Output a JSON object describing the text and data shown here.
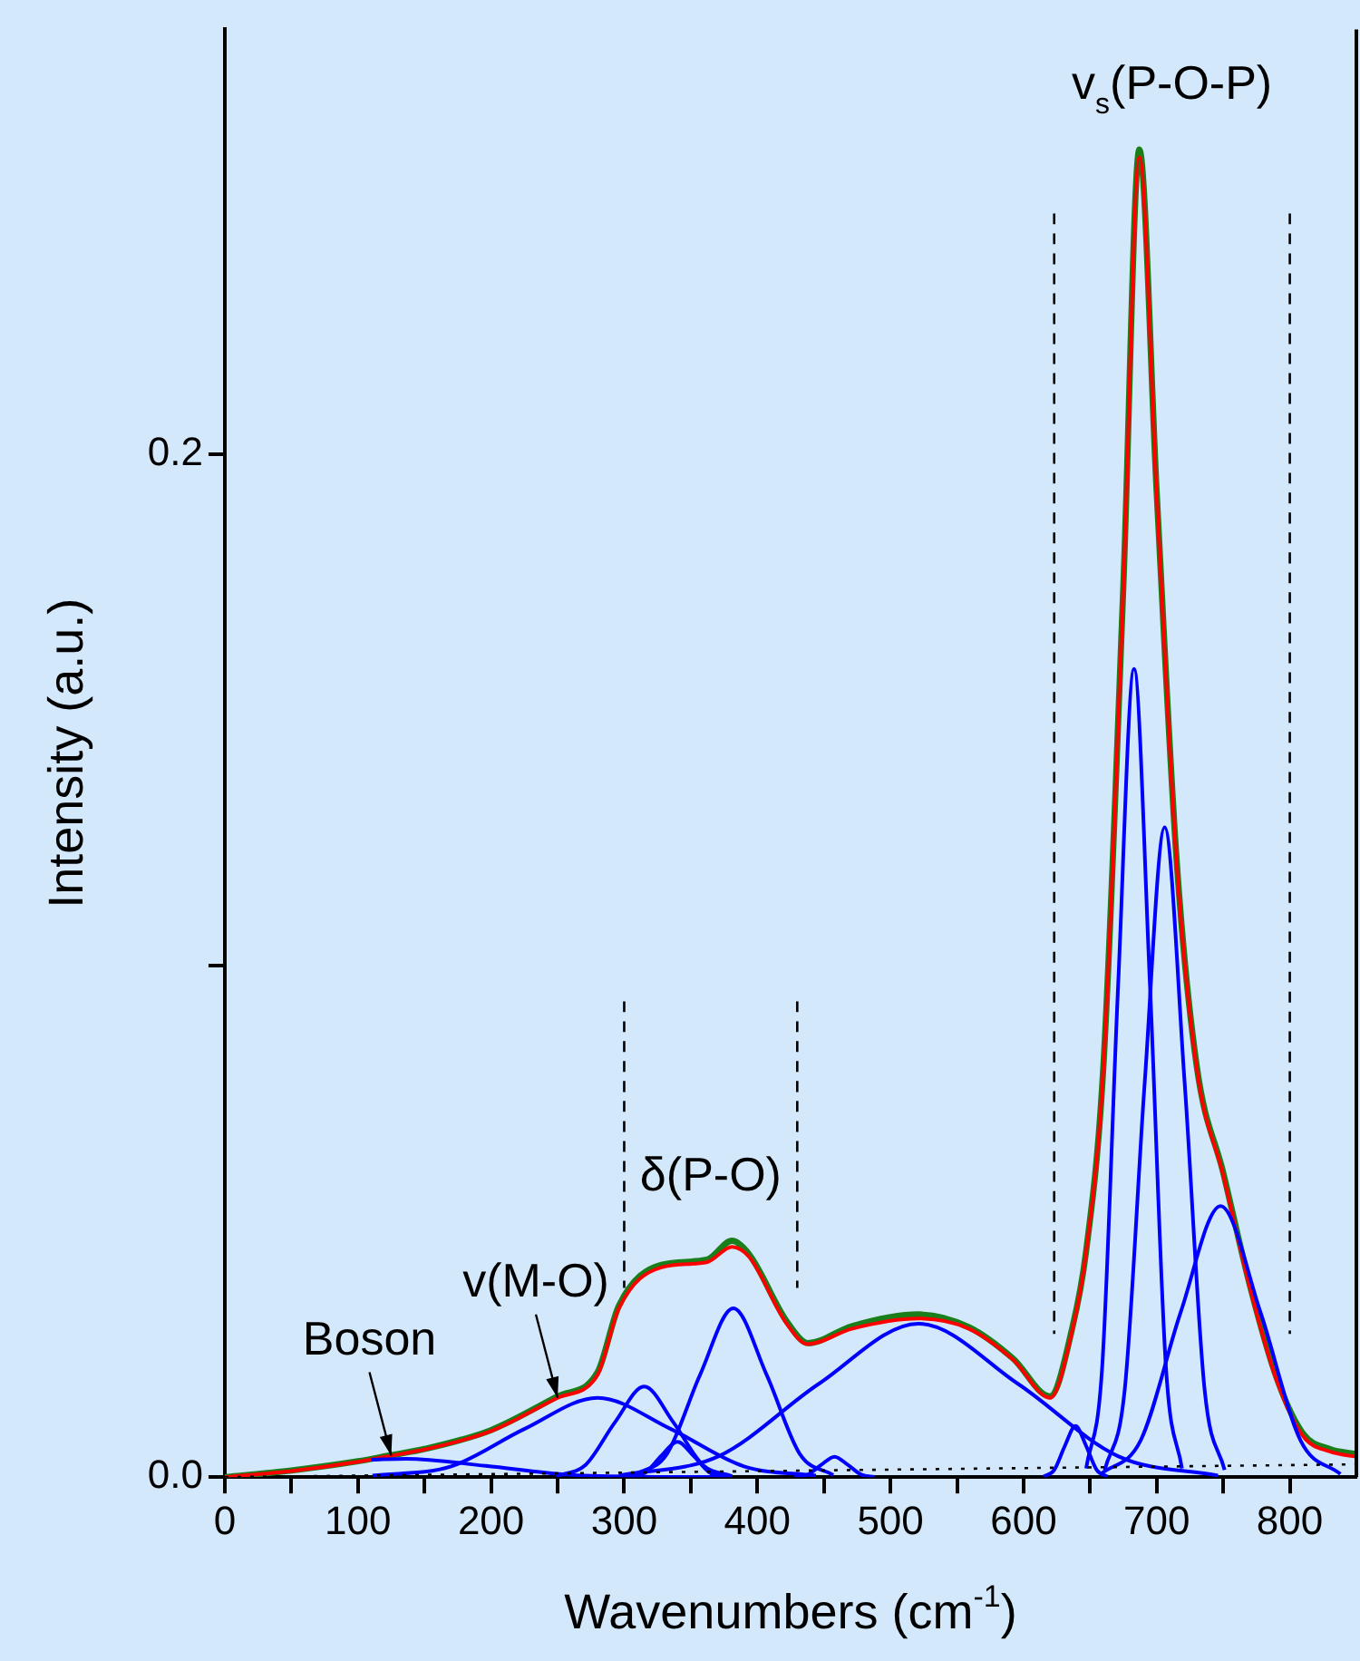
{
  "chart_data": {
    "type": "line",
    "xlabel": "Wavenumbers (cm$^{-1}$)",
    "ylabel": "Intensity (a.u.)",
    "xlim": [
      0,
      850
    ],
    "xticks": [
      0,
      {
        "value": 50,
        "label": null
      },
      100,
      {
        "value": 150,
        "label": null
      },
      200,
      {
        "value": 250,
        "label": null
      },
      300,
      {
        "value": 350,
        "label": null
      },
      400,
      {
        "value": 450,
        "label": null
      },
      500,
      {
        "value": 550,
        "label": null
      },
      600,
      {
        "value": 650,
        "label": null
      },
      700,
      {
        "value": 750,
        "label": null
      },
      800
    ],
    "ylim": [
      0,
      0.283
    ],
    "yticks": [
      {
        "value": 0,
        "label": "0.0"
      },
      {
        "value": 0.1,
        "label": null
      },
      0.2
    ],
    "grid": false,
    "legend": false,
    "marker": "none",
    "series": [
      {
        "color": "#1a7f1a",
        "x": [
          0,
          50,
          100,
          125,
          150,
          200,
          250,
          280,
          296,
          328,
          362,
          381,
          394,
          422,
          438,
          471,
          521,
          559,
          592,
          620,
          636,
          647,
          660,
          675,
          687,
          700,
          715,
          730,
          750,
          770,
          790,
          810,
          830,
          850
        ],
        "values": [
          0,
          0.0013,
          0.0031,
          0.0043,
          0.0055,
          0.0092,
          0.0158,
          0.0205,
          0.0335,
          0.0415,
          0.0425,
          0.0462,
          0.0435,
          0.0305,
          0.0262,
          0.0295,
          0.0318,
          0.0293,
          0.0232,
          0.0158,
          0.0285,
          0.0442,
          0.0805,
          0.1745,
          0.2595,
          0.1925,
          0.1205,
          0.0805,
          0.0595,
          0.0375,
          0.0195,
          0.0085,
          0.0055,
          0.0045
        ]
      },
      {
        "color": "#ff0000",
        "x": [
          0,
          50,
          100,
          125,
          150,
          200,
          250,
          280,
          296,
          328,
          362,
          381,
          394,
          422,
          438,
          471,
          521,
          559,
          592,
          620,
          636,
          647,
          660,
          675,
          687,
          700,
          715,
          730,
          750,
          770,
          790,
          810,
          830,
          850
        ],
        "values": [
          0,
          0.0012,
          0.003,
          0.0042,
          0.0054,
          0.009,
          0.0155,
          0.02,
          0.033,
          0.041,
          0.042,
          0.045,
          0.043,
          0.03,
          0.026,
          0.029,
          0.031,
          0.029,
          0.023,
          0.0155,
          0.028,
          0.044,
          0.08,
          0.174,
          0.258,
          0.192,
          0.12,
          0.08,
          0.059,
          0.037,
          0.019,
          0.008,
          0.005,
          0.004
        ]
      },
      {
        "type": "line",
        "color": "#0000ff",
        "x": [
          110,
          136,
          196,
          256,
          316,
          380
        ],
        "values": [
          0.0034,
          0.0036,
          0.0022,
          0.0005,
          0.0001,
          0
        ]
      },
      {
        "type": "line",
        "color": "#0000ff",
        "x": [
          111,
          170,
          225,
          280,
          335,
          390,
          444
        ],
        "values": [
          0.0003,
          0.0021,
          0.0094,
          0.0155,
          0.0094,
          0.0021,
          0.0003
        ]
      },
      {
        "type": "line",
        "color": "#0000ff",
        "x": [
          249,
          271,
          293,
          315,
          337,
          359,
          381
        ],
        "values": [
          0.0002,
          0.0024,
          0.0107,
          0.0177,
          0.0107,
          0.0024,
          0.0002
        ]
      },
      {
        "type": "line",
        "color": "#0000ff",
        "x": [
          304,
          316,
          328,
          340,
          352,
          364,
          376
        ],
        "values": [
          0.0001,
          0.0009,
          0.0042,
          0.0069,
          0.0042,
          0.0009,
          0.0001
        ]
      },
      {
        "type": "line",
        "color": "#0000ff",
        "x": [
          307,
          332,
          357,
          382,
          407,
          432,
          457
        ],
        "values": [
          0.0004,
          0.0045,
          0.02,
          0.033,
          0.02,
          0.0045,
          0.0004
        ]
      },
      {
        "type": "line",
        "color": "#0000ff",
        "x": [
          428,
          438,
          448,
          458,
          468,
          478,
          488
        ],
        "values": [
          0,
          0.0005,
          0.0024,
          0.004,
          0.0024,
          0.0005,
          0
        ]
      },
      {
        "type": "line",
        "color": "#0000ff",
        "x": [
          296,
          371,
          446,
          521,
          596,
          671,
          746
        ],
        "values": [
          0.0003,
          0.0041,
          0.0182,
          0.03,
          0.0182,
          0.0041,
          0.0003
        ]
      },
      {
        "type": "line",
        "color": "#0000ff",
        "x": [
          615,
          623,
          631,
          639,
          647,
          655,
          663
        ],
        "values": [
          0.0001,
          0.0014,
          0.0061,
          0.01,
          0.0061,
          0.0014,
          0.0001
        ]
      },
      {
        "type": "line",
        "color": "#0000ff",
        "x": [
          647,
          659,
          671,
          683,
          695,
          707,
          719
        ],
        "values": [
          0.0017,
          0.0213,
          0.0959,
          0.158,
          0.0959,
          0.0213,
          0.0017
        ]
      },
      {
        "type": "line",
        "color": "#0000ff",
        "x": [
          661,
          676,
          691,
          706,
          721,
          736,
          751
        ],
        "values": [
          0.0014,
          0.0171,
          0.0771,
          0.127,
          0.0771,
          0.0171,
          0.0014
        ]
      },
      {
        "type": "line",
        "color": "#0000ff",
        "x": [
          658,
          688,
          718,
          748,
          778,
          808,
          838
        ],
        "values": [
          0.0006,
          0.0072,
          0.0322,
          0.053,
          0.0322,
          0.0072,
          0.0006
        ]
      },
      {
        "type": "line",
        "color": "#000000",
        "line_style": "dotted",
        "x": [
          0,
          850
        ],
        "values": [
          0,
          0.0025
        ]
      },
      {
        "type": "line",
        "color": "#000000",
        "line_style": "dashed",
        "x": [
          300,
          300
        ],
        "values": [
          0.093,
          0.037
        ]
      },
      {
        "type": "line",
        "color": "#000000",
        "line_style": "dashed",
        "x": [
          430,
          430
        ],
        "values": [
          0.093,
          0.037
        ]
      },
      {
        "type": "line",
        "color": "#000000",
        "line_style": "dashed",
        "x": [
          623,
          623
        ],
        "values": [
          0.247,
          0.028
        ]
      },
      {
        "type": "line",
        "color": "#000000",
        "line_style": "dashed",
        "x": [
          800,
          800
        ],
        "values": [
          0.247,
          0.028
        ]
      }
    ],
    "annotations": [
      {
        "text": "Boson",
        "x": 125,
        "y": 0.0042
      },
      {
        "text": "v(M-O)",
        "x": 250,
        "y": 0.0155
      },
      "δ(P-O)",
      "v$_{s}$(P-O-P)"
    ]
  }
}
